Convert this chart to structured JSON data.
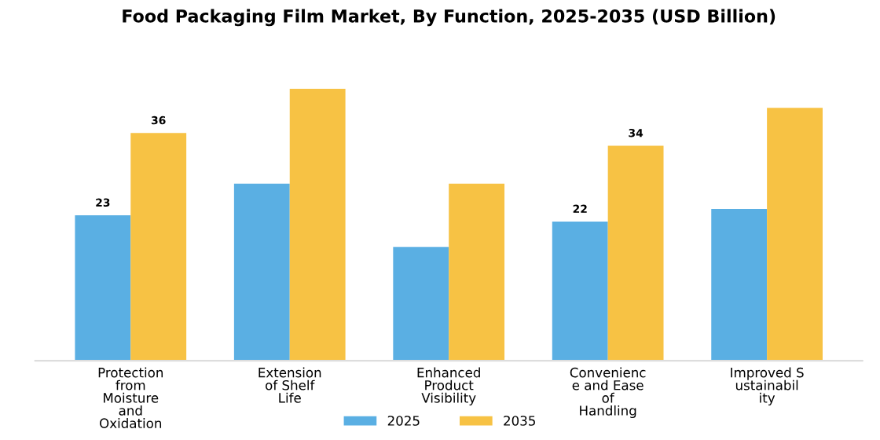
{
  "chart_data": {
    "type": "bar",
    "title": "Food Packaging Film Market, By Function, 2025-2035 (USD Billion)",
    "categories": [
      "Protection\nfrom\nMoisture\nand\nOxidation",
      "Extension\nof Shelf\nLife",
      "Enhanced\nProduct\nVisibility",
      "Convenienc\ne and Ease\nof\nHandling",
      "Improved S\nustainabil\nity"
    ],
    "series": [
      {
        "name": "2025",
        "color": "#5aafe3",
        "values": [
          23,
          28,
          18,
          22,
          24
        ],
        "value_labels": [
          "23",
          null,
          null,
          "22",
          null
        ]
      },
      {
        "name": "2035",
        "color": "#f7c244",
        "values": [
          36,
          43,
          28,
          34,
          40
        ],
        "value_labels": [
          "36",
          null,
          null,
          "34",
          null
        ]
      }
    ],
    "legend": "bottom",
    "grid": false
  }
}
